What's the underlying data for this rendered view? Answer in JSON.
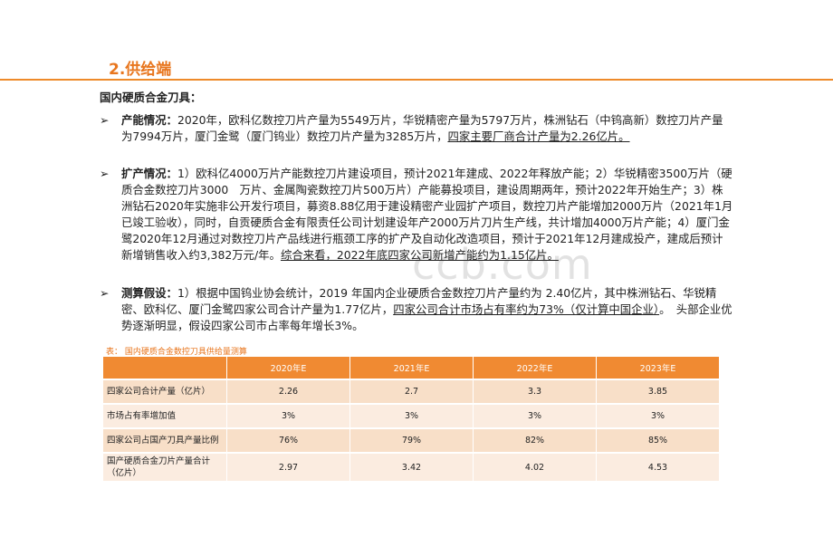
{
  "title": "2.供给端",
  "subhead": "国内硬质合金刀具：",
  "watermark": "ccb.com",
  "bullets": [
    {
      "lead": "产能情况：",
      "plain": "2020年，欧科亿数控刀片产量为5549万片，华锐精密产量为5797万片，株洲钻石（中钨高新）数控刀片产量为7994万片，厦门金鹭（厦门钨业）数控刀片产量为3285万片，",
      "underline": "四家主要厂商合计产量为2.26亿片。",
      "tail": ""
    },
    {
      "lead": "扩产情况：",
      "plain": "1）欧科亿4000万片产能数控刀片建设项目，预计2021年建成、2022年释放产能；2）华锐精密3500万片（硬质合金数控刀片3000　万片、金属陶瓷数控刀片500万片）产能募投项目，建设周期两年，预计2022年开始生产；3）株洲钻石2020年实施非公开发行项目，募资8.88亿用于建设精密产业园扩产项目，数控刀片产能增加2000万片（2021年1月已竣工验收），同时，自贡硬质合金有限责任公司计划建设年产2000万片刀片生产线，共计增加4000万片产能；4）厦门金鹭2020年12月通过对数控刀片产品线进行瓶颈工序的扩产及自动化改造项目，预计于2021年12月建成投产，建成后预计新增销售收入约3,382万元/年。",
      "underline": "综合来看，2022年底四家公司新增产能约为1.15亿片。",
      "tail": ""
    },
    {
      "lead": "测算假设：",
      "plain": "1）根据中国钨业协会统计，2019 年国内企业硬质合金数控刀片产量约为 2.40亿片，其中株洲钻石、华锐精密、欧科亿、厦门金鹭四家公司合计产量为1.77亿片，",
      "underline": "四家公司合计市场占有率约为73%（仅计算中国企业）",
      "tail": "。　头部企业优势逐渐明显，假设四家公司市占率每年增长3%。"
    }
  ],
  "table": {
    "caption": "表： 国内硬质合金数控刀具供给量测算",
    "headers": [
      "",
      "2020年E",
      "2021年E",
      "2022年E",
      "2023年E"
    ],
    "rows": [
      [
        "四家公司合计产量（亿片）",
        "2.26",
        "2.7",
        "3.3",
        "3.85"
      ],
      [
        "市场占有率增加值",
        "3%",
        "3%",
        "3%",
        "3%"
      ],
      [
        "四家公司占国产刀具产量比例",
        "76%",
        "79%",
        "82%",
        "85%"
      ],
      [
        "国产硬质合金刀片产量合计（亿片）",
        "2.97",
        "3.42",
        "4.02",
        "4.53"
      ]
    ]
  },
  "colors": {
    "accent": "#e8761e",
    "header_bg": "#f08a32",
    "row_bg": "#f8dfc8"
  }
}
